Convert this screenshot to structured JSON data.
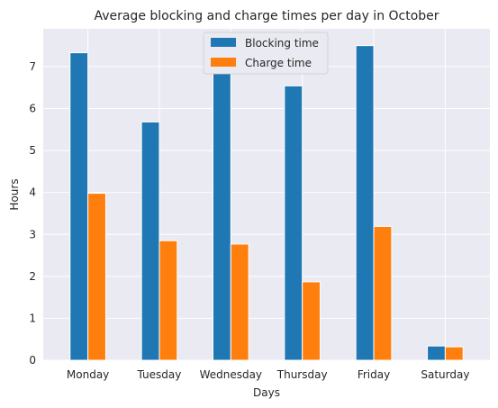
{
  "chart_data": {
    "type": "bar",
    "title": "Average blocking and charge times per day in October",
    "xlabel": "Days",
    "ylabel": "Hours",
    "categories": [
      "Monday",
      "Tuesday",
      "Wednesday",
      "Thursday",
      "Friday",
      "Saturday"
    ],
    "series": [
      {
        "name": "Blocking time",
        "color": "#1f77b4",
        "values": [
          7.33,
          5.68,
          7.1,
          6.54,
          7.5,
          0.34
        ]
      },
      {
        "name": "Charge time",
        "color": "#ff7f0e",
        "values": [
          3.98,
          2.85,
          2.77,
          1.87,
          3.19,
          0.32
        ]
      }
    ],
    "ylim": [
      0,
      7.9
    ],
    "yticks": [
      0,
      1,
      2,
      3,
      4,
      5,
      6,
      7
    ],
    "grid": true,
    "legend_position": "top-center"
  }
}
